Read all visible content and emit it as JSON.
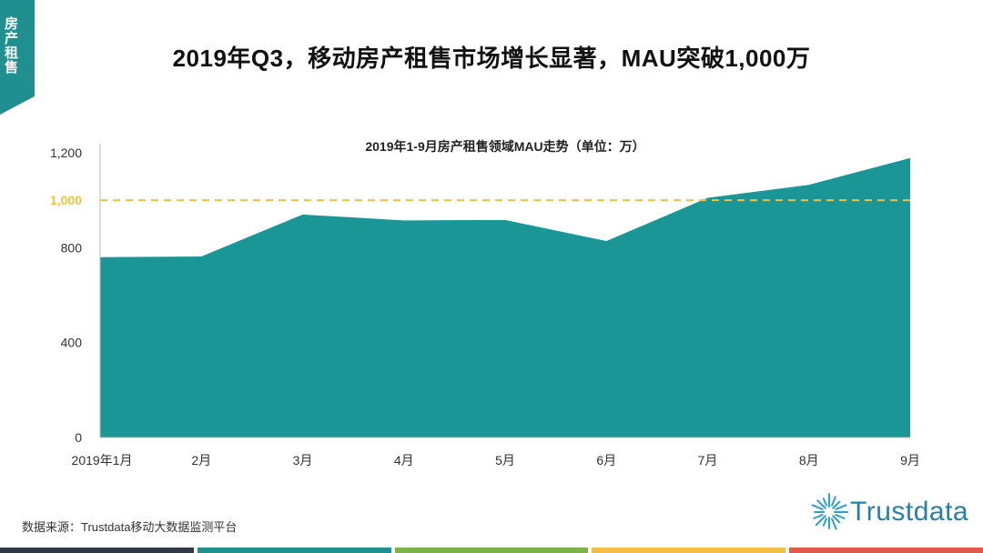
{
  "side_tab": {
    "label": "房产租售",
    "color": "#1f8f8f"
  },
  "title": "2019年Q3，移动房产租售市场增长显著，MAU突破1,000万",
  "chart_data": {
    "type": "area",
    "title": "2019年1-9月房产租售领域MAU走势（单位：万）",
    "categories": [
      "2019年1月",
      "2月",
      "3月",
      "4月",
      "5月",
      "6月",
      "7月",
      "8月",
      "9月"
    ],
    "values": [
      760,
      763,
      940,
      915,
      917,
      828,
      1010,
      1065,
      1178
    ],
    "ylim": [
      0,
      1200
    ],
    "yticks": [
      "0",
      "400",
      "800",
      "1,000",
      "1,200"
    ],
    "reference_line": {
      "value": 1000,
      "label": "1,000",
      "color": "#f2c043"
    },
    "area_color": "#1b9696",
    "grid": false
  },
  "source": "数据来源：Trustdata移动大数据监测平台",
  "logo": {
    "text": "Trustdata",
    "icon": "trustdata-burst-icon",
    "color": "#2a7fa5"
  },
  "footer_colors": [
    "#2f3a44",
    "#1f8f8f",
    "#7db24a",
    "#f2c043",
    "#e25a4a"
  ]
}
